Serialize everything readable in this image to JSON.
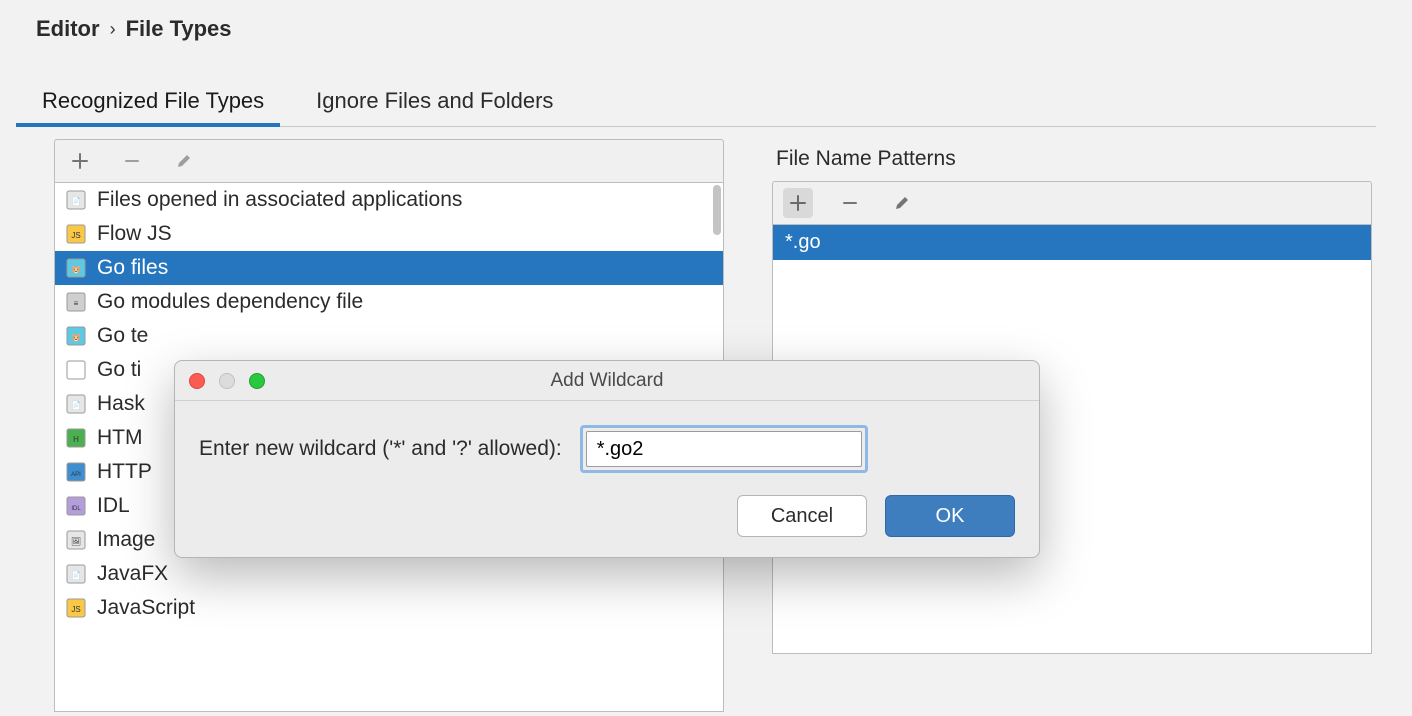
{
  "breadcrumb": {
    "editor": "Editor",
    "fileTypes": "File Types"
  },
  "tabs": {
    "recognized": "Recognized File Types",
    "ignore": "Ignore Files and Folders"
  },
  "patternsHeader": "File Name Patterns",
  "fileTypes": {
    "items": [
      {
        "label": "Files opened in associated applications",
        "iconBg": "#e6e6e6",
        "iconMark": "📄"
      },
      {
        "label": "Flow JS",
        "iconBg": "#f9c846",
        "iconMark": "JS"
      },
      {
        "label": "Go files",
        "iconBg": "#5dc9e2",
        "iconMark": "🐹",
        "selected": true
      },
      {
        "label": "Go modules dependency file",
        "iconBg": "#cfcfcf",
        "iconMark": "≡"
      },
      {
        "label": "Go te",
        "iconBg": "#5dc9e2",
        "iconMark": "🐹"
      },
      {
        "label": "Go ti",
        "iconBg": "#ffffff",
        "iconMark": ""
      },
      {
        "label": "Hask",
        "iconBg": "#e6e6e6",
        "iconMark": "📄"
      },
      {
        "label": "HTM",
        "iconBg": "#4caf50",
        "iconMark": "H"
      },
      {
        "label": "HTTP",
        "iconBg": "#3f8ed0",
        "iconMark": "API"
      },
      {
        "label": "IDL",
        "iconBg": "#b39ddb",
        "iconMark": "IDL"
      },
      {
        "label": "Image",
        "iconBg": "#e6e6e6",
        "iconMark": "🖼"
      },
      {
        "label": "JavaFX",
        "iconBg": "#e6e6e6",
        "iconMark": "📄"
      },
      {
        "label": "JavaScript",
        "iconBg": "#f9c846",
        "iconMark": "JS"
      }
    ]
  },
  "patterns": {
    "items": [
      "*.go"
    ]
  },
  "dialog": {
    "title": "Add Wildcard",
    "label": "Enter new wildcard ('*' and '?' allowed):",
    "value": "*.go2",
    "cancel": "Cancel",
    "ok": "OK"
  },
  "colors": {
    "selection": "#2675bf",
    "tabUnderline": "#2675bf",
    "primaryBtn": "#3e7ebf"
  }
}
